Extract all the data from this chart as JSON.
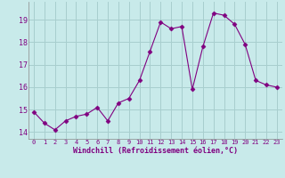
{
  "x": [
    0,
    1,
    2,
    3,
    4,
    5,
    6,
    7,
    8,
    9,
    10,
    11,
    12,
    13,
    14,
    15,
    16,
    17,
    18,
    19,
    20,
    21,
    22,
    23
  ],
  "y": [
    14.9,
    14.4,
    14.1,
    14.5,
    14.7,
    14.8,
    15.1,
    14.5,
    15.3,
    15.5,
    16.3,
    17.6,
    18.9,
    18.6,
    18.7,
    15.9,
    17.8,
    19.3,
    19.2,
    18.8,
    17.9,
    16.3,
    16.1,
    16.0
  ],
  "line_color": "#800080",
  "marker": "D",
  "marker_size": 2.5,
  "bg_color": "#c8eaea",
  "grid_color": "#a8cece",
  "xlabel": "Windchill (Refroidissement éolien,°C)",
  "xlabel_color": "#800080",
  "tick_color": "#800080",
  "ylim": [
    13.7,
    19.8
  ],
  "yticks": [
    14,
    15,
    16,
    17,
    18,
    19
  ],
  "xticks": [
    0,
    1,
    2,
    3,
    4,
    5,
    6,
    7,
    8,
    9,
    10,
    11,
    12,
    13,
    14,
    15,
    16,
    17,
    18,
    19,
    20,
    21,
    22,
    23
  ]
}
